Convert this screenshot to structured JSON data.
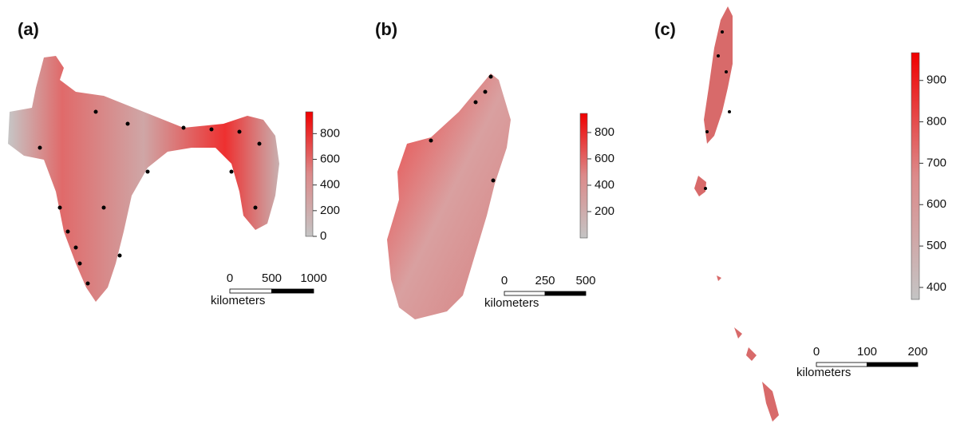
{
  "panels": [
    {
      "label": "(a)",
      "colorbar": {
        "lim": [
          0,
          970
        ],
        "ticks": [
          0,
          200,
          400,
          600,
          800
        ]
      },
      "scalebar": {
        "ticks": [
          0,
          500,
          1000
        ],
        "unit": "kilometers"
      }
    },
    {
      "label": "(b)",
      "colorbar": {
        "lim": [
          0,
          945
        ],
        "ticks": [
          200,
          400,
          600,
          800
        ]
      },
      "scalebar": {
        "ticks": [
          0,
          250,
          500
        ],
        "unit": "kilometers"
      }
    },
    {
      "label": "(c)",
      "colorbar": {
        "lim": [
          371,
          967
        ],
        "ticks": [
          400,
          500,
          600,
          700,
          800,
          900
        ]
      },
      "scalebar": {
        "ticks": [
          0,
          100,
          200
        ],
        "unit": "kilometers"
      }
    }
  ]
}
